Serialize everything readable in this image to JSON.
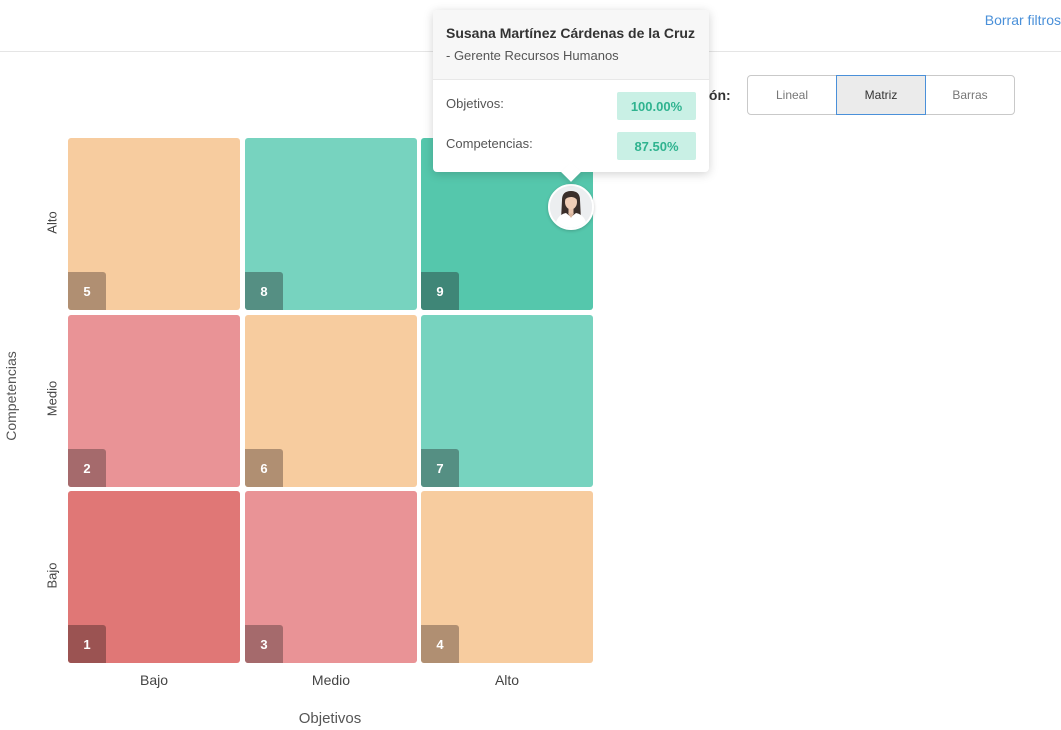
{
  "header": {
    "clear_filters": "Borrar filtros"
  },
  "view_selector": {
    "label": "ión:",
    "options": [
      "Lineal",
      "Matriz",
      "Barras"
    ],
    "selected": "Matriz"
  },
  "matrix": {
    "y_title": "Competencias",
    "x_title": "Objetivos",
    "y_ticks": [
      "Alto",
      "Medio",
      "Bajo"
    ],
    "x_ticks": [
      "Bajo",
      "Medio",
      "Alto"
    ],
    "cells": [
      {
        "number": "5",
        "color": "#f7cc9f"
      },
      {
        "number": "8",
        "color": "#77d3bf"
      },
      {
        "number": "9",
        "color": "#55c7ac"
      },
      {
        "number": "2",
        "color": "#e99396"
      },
      {
        "number": "6",
        "color": "#f7cc9f"
      },
      {
        "number": "7",
        "color": "#77d3bf"
      },
      {
        "number": "1",
        "color": "#e07776"
      },
      {
        "number": "3",
        "color": "#e99396"
      },
      {
        "number": "4",
        "color": "#f7cc9f"
      }
    ]
  },
  "tooltip": {
    "name": "Susana Martínez Cárdenas de la Cruz",
    "role": "- Gerente Recursos Humanos",
    "objetivos_label": "Objetivos:",
    "objetivos_value": "100.00%",
    "competencias_label": "Competencias:",
    "competencias_value": "87.50%"
  }
}
